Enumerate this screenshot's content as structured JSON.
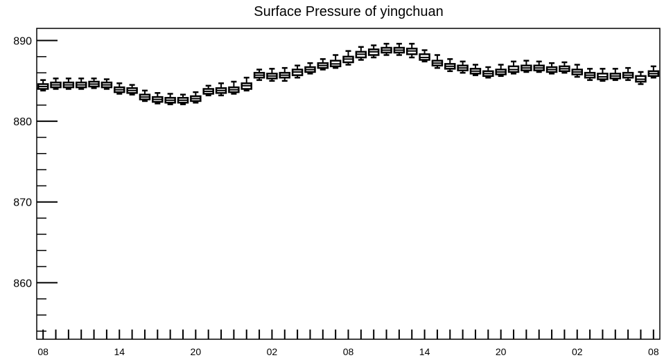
{
  "chart_data": {
    "type": "box",
    "title": "Surface Pressure of yingchuan",
    "xlabel": "",
    "ylabel": "",
    "ylim": [
      853,
      891.5
    ],
    "xlim": [
      -0.5,
      48.5
    ],
    "yticks": [
      860,
      870,
      880,
      890
    ],
    "yticks_minor_step": 2,
    "xtick_labels": [
      {
        "x": 0,
        "label": "08"
      },
      {
        "x": 6,
        "label": "14"
      },
      {
        "x": 12,
        "label": "20"
      },
      {
        "x": 18,
        "label": "02"
      },
      {
        "x": 24,
        "label": "08"
      },
      {
        "x": 30,
        "label": "14"
      },
      {
        "x": 36,
        "label": "20"
      },
      {
        "x": 42,
        "label": "02"
      },
      {
        "x": 48,
        "label": "08"
      }
    ],
    "grid": false,
    "boxes": [
      {
        "x": 0,
        "min": 883.8,
        "q1": 884.0,
        "median": 884.3,
        "q3": 884.6,
        "max": 885.1
      },
      {
        "x": 1,
        "min": 884.0,
        "q1": 884.2,
        "median": 884.5,
        "q3": 884.8,
        "max": 885.3
      },
      {
        "x": 2,
        "min": 884.0,
        "q1": 884.2,
        "median": 884.5,
        "q3": 884.8,
        "max": 885.3
      },
      {
        "x": 3,
        "min": 884.0,
        "q1": 884.2,
        "median": 884.5,
        "q3": 884.8,
        "max": 885.3
      },
      {
        "x": 4,
        "min": 884.1,
        "q1": 884.3,
        "median": 884.6,
        "q3": 884.9,
        "max": 885.3
      },
      {
        "x": 5,
        "min": 884.0,
        "q1": 884.2,
        "median": 884.5,
        "q3": 884.8,
        "max": 885.2
      },
      {
        "x": 6,
        "min": 883.4,
        "q1": 883.6,
        "median": 883.9,
        "q3": 884.2,
        "max": 884.7
      },
      {
        "x": 7,
        "min": 883.3,
        "q1": 883.5,
        "median": 883.8,
        "q3": 884.1,
        "max": 884.5
      },
      {
        "x": 8,
        "min": 882.5,
        "q1": 882.7,
        "median": 883.0,
        "q3": 883.3,
        "max": 883.8
      },
      {
        "x": 9,
        "min": 882.2,
        "q1": 882.4,
        "median": 882.7,
        "q3": 883.0,
        "max": 883.5
      },
      {
        "x": 10,
        "min": 882.1,
        "q1": 882.3,
        "median": 882.6,
        "q3": 882.9,
        "max": 883.4
      },
      {
        "x": 11,
        "min": 882.1,
        "q1": 882.3,
        "median": 882.6,
        "q3": 882.9,
        "max": 883.3
      },
      {
        "x": 12,
        "min": 882.3,
        "q1": 882.5,
        "median": 882.8,
        "q3": 883.1,
        "max": 883.6
      },
      {
        "x": 13,
        "min": 883.2,
        "q1": 883.4,
        "median": 883.7,
        "q3": 884.0,
        "max": 884.4
      },
      {
        "x": 14,
        "min": 883.2,
        "q1": 883.5,
        "median": 883.8,
        "q3": 884.1,
        "max": 884.7
      },
      {
        "x": 15,
        "min": 883.4,
        "q1": 883.6,
        "median": 883.9,
        "q3": 884.2,
        "max": 884.9
      },
      {
        "x": 16,
        "min": 883.8,
        "q1": 884.0,
        "median": 884.4,
        "q3": 884.7,
        "max": 885.4
      },
      {
        "x": 17,
        "min": 885.1,
        "q1": 885.4,
        "median": 885.7,
        "q3": 886.0,
        "max": 886.4
      },
      {
        "x": 18,
        "min": 885.0,
        "q1": 885.3,
        "median": 885.6,
        "q3": 885.9,
        "max": 886.5
      },
      {
        "x": 19,
        "min": 885.0,
        "q1": 885.4,
        "median": 885.7,
        "q3": 886.0,
        "max": 886.6
      },
      {
        "x": 20,
        "min": 885.4,
        "q1": 885.7,
        "median": 886.1,
        "q3": 886.4,
        "max": 886.9
      },
      {
        "x": 21,
        "min": 885.9,
        "q1": 886.1,
        "median": 886.4,
        "q3": 886.7,
        "max": 887.2
      },
      {
        "x": 22,
        "min": 886.4,
        "q1": 886.6,
        "median": 886.9,
        "q3": 887.2,
        "max": 887.7
      },
      {
        "x": 23,
        "min": 886.6,
        "q1": 886.8,
        "median": 887.1,
        "q3": 887.5,
        "max": 888.2
      },
      {
        "x": 24,
        "min": 887.0,
        "q1": 887.3,
        "median": 887.7,
        "q3": 888.0,
        "max": 888.7
      },
      {
        "x": 25,
        "min": 887.6,
        "q1": 887.9,
        "median": 888.3,
        "q3": 888.6,
        "max": 889.2
      },
      {
        "x": 26,
        "min": 887.9,
        "q1": 888.2,
        "median": 888.6,
        "q3": 888.9,
        "max": 889.4
      },
      {
        "x": 27,
        "min": 888.2,
        "q1": 888.5,
        "median": 888.8,
        "q3": 889.1,
        "max": 889.6
      },
      {
        "x": 28,
        "min": 888.2,
        "q1": 888.5,
        "median": 888.8,
        "q3": 889.1,
        "max": 889.6
      },
      {
        "x": 29,
        "min": 887.9,
        "q1": 888.3,
        "median": 888.7,
        "q3": 889.0,
        "max": 889.6
      },
      {
        "x": 30,
        "min": 887.4,
        "q1": 887.6,
        "median": 887.9,
        "q3": 888.3,
        "max": 888.8
      },
      {
        "x": 31,
        "min": 886.6,
        "q1": 886.9,
        "median": 887.2,
        "q3": 887.5,
        "max": 888.2
      },
      {
        "x": 32,
        "min": 886.2,
        "q1": 886.5,
        "median": 886.8,
        "q3": 887.1,
        "max": 887.7
      },
      {
        "x": 33,
        "min": 886.0,
        "q1": 886.3,
        "median": 886.6,
        "q3": 886.9,
        "max": 887.4
      },
      {
        "x": 34,
        "min": 885.7,
        "q1": 885.9,
        "median": 886.2,
        "q3": 886.5,
        "max": 887.0
      },
      {
        "x": 35,
        "min": 885.4,
        "q1": 885.6,
        "median": 885.9,
        "q3": 886.2,
        "max": 886.7
      },
      {
        "x": 36,
        "min": 885.6,
        "q1": 885.8,
        "median": 886.1,
        "q3": 886.4,
        "max": 887.0
      },
      {
        "x": 37,
        "min": 885.9,
        "q1": 886.1,
        "median": 886.4,
        "q3": 886.8,
        "max": 887.4
      },
      {
        "x": 38,
        "min": 886.1,
        "q1": 886.3,
        "median": 886.6,
        "q3": 886.9,
        "max": 887.5
      },
      {
        "x": 39,
        "min": 886.1,
        "q1": 886.3,
        "median": 886.6,
        "q3": 886.9,
        "max": 887.4
      },
      {
        "x": 40,
        "min": 885.9,
        "q1": 886.1,
        "median": 886.4,
        "q3": 886.7,
        "max": 887.2
      },
      {
        "x": 41,
        "min": 886.0,
        "q1": 886.2,
        "median": 886.5,
        "q3": 886.8,
        "max": 887.3
      },
      {
        "x": 42,
        "min": 885.5,
        "q1": 885.8,
        "median": 886.1,
        "q3": 886.4,
        "max": 887.0
      },
      {
        "x": 43,
        "min": 885.1,
        "q1": 885.4,
        "median": 885.7,
        "q3": 886.0,
        "max": 886.5
      },
      {
        "x": 44,
        "min": 885.0,
        "q1": 885.2,
        "median": 885.5,
        "q3": 885.9,
        "max": 886.5
      },
      {
        "x": 45,
        "min": 885.1,
        "q1": 885.3,
        "median": 885.6,
        "q3": 885.9,
        "max": 886.5
      },
      {
        "x": 46,
        "min": 885.1,
        "q1": 885.4,
        "median": 885.7,
        "q3": 886.0,
        "max": 886.6
      },
      {
        "x": 47,
        "min": 884.6,
        "q1": 884.9,
        "median": 885.2,
        "q3": 885.6,
        "max": 886.1
      },
      {
        "x": 48,
        "min": 885.4,
        "q1": 885.6,
        "median": 885.9,
        "q3": 886.2,
        "max": 886.8
      }
    ],
    "colors": {
      "box_stroke": "#000000",
      "box_fill": "#ffffff",
      "axis": "#000000",
      "background": "#ffffff"
    }
  }
}
